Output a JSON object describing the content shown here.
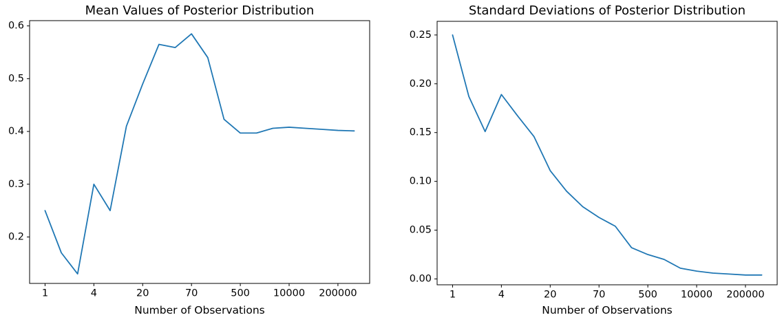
{
  "figure": {
    "background_color": "#ffffff",
    "axis_color": "#000000",
    "line_color": "#1f77b4"
  },
  "chart_data": [
    {
      "type": "line",
      "title": "Mean Values of Posterior Distribution",
      "xlabel": "Number of Observations",
      "ylabel": "",
      "grid": false,
      "legend": "none",
      "x_scale": "categorical-index (log-like observation counts)",
      "x_tick_indices": [
        0,
        3,
        6,
        9,
        12,
        15,
        18
      ],
      "x_tick_labels": [
        "1",
        "4",
        "20",
        "70",
        "500",
        "10000",
        "200000"
      ],
      "y_ticks": [
        0.2,
        0.3,
        0.4,
        0.5,
        0.6
      ],
      "y_tick_labels": [
        "0.2",
        "0.3",
        "0.4",
        "0.5",
        "0.6"
      ],
      "xlim": [
        -0.95,
        19.95
      ],
      "ylim": [
        0.112,
        0.61
      ],
      "x": [
        0,
        1,
        2,
        3,
        4,
        5,
        6,
        7,
        8,
        9,
        10,
        11,
        12,
        13,
        14,
        15,
        16,
        17,
        18,
        19
      ],
      "values": [
        0.25,
        0.17,
        0.13,
        0.3,
        0.25,
        0.41,
        0.49,
        0.565,
        0.559,
        0.585,
        0.54,
        0.423,
        0.397,
        0.397,
        0.406,
        0.408,
        0.406,
        0.404,
        0.402,
        0.401
      ]
    },
    {
      "type": "line",
      "title": "Standard Deviations of Posterior Distribution",
      "xlabel": "Number of Observations",
      "ylabel": "",
      "grid": false,
      "legend": "none",
      "x_scale": "categorical-index (log-like observation counts)",
      "x_tick_indices": [
        0,
        3,
        6,
        9,
        12,
        15,
        18
      ],
      "x_tick_labels": [
        "1",
        "4",
        "20",
        "70",
        "500",
        "10000",
        "200000"
      ],
      "y_ticks": [
        0.0,
        0.05,
        0.1,
        0.15,
        0.2,
        0.25
      ],
      "y_tick_labels": [
        "0.00",
        "0.05",
        "0.10",
        "0.15",
        "0.20",
        "0.25"
      ],
      "xlim": [
        -0.95,
        19.95
      ],
      "ylim": [
        -0.006,
        0.264
      ],
      "x": [
        0,
        1,
        2,
        3,
        4,
        5,
        6,
        7,
        8,
        9,
        10,
        11,
        12,
        13,
        14,
        15,
        16,
        17,
        18,
        19
      ],
      "values": [
        0.25,
        0.187,
        0.151,
        0.189,
        0.167,
        0.146,
        0.111,
        0.09,
        0.074,
        0.063,
        0.054,
        0.032,
        0.025,
        0.02,
        0.011,
        0.008,
        0.006,
        0.005,
        0.004,
        0.004
      ]
    }
  ]
}
